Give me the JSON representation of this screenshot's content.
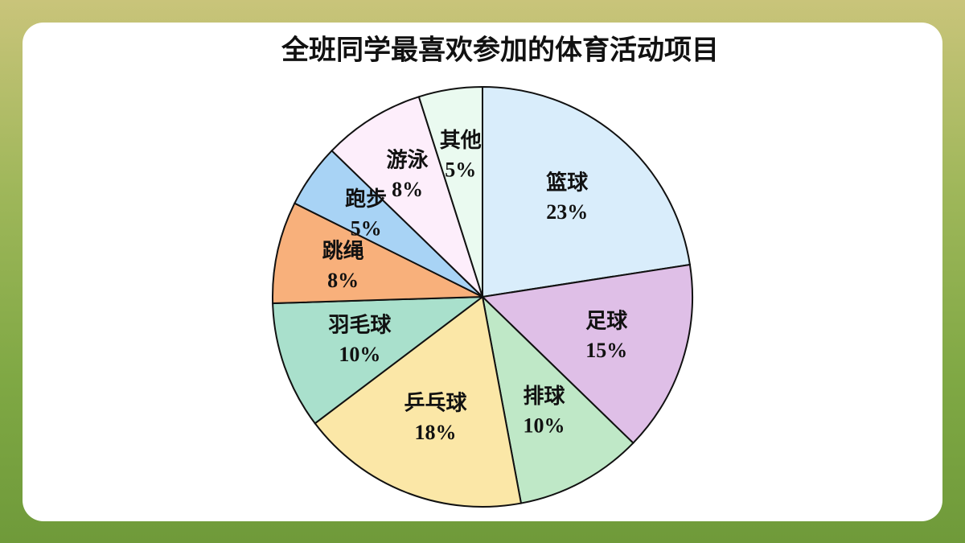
{
  "chart_data": {
    "type": "pie",
    "title": "全班同学最喜欢参加的体育活动项目",
    "categories": [
      "篮球",
      "足球",
      "排球",
      "乒乓球",
      "羽毛球",
      "跳绳",
      "跑步",
      "游泳",
      "其他"
    ],
    "values": [
      23,
      15,
      10,
      18,
      10,
      8,
      5,
      8,
      5
    ],
    "value_labels": [
      "23%",
      "15%",
      "10%",
      "18%",
      "10%",
      "8%",
      "5%",
      "8%",
      "5%"
    ],
    "colors": [
      "#d9edfb",
      "#dfbfe7",
      "#bfe8c7",
      "#fbe7a7",
      "#a9e0cc",
      "#f8b07b",
      "#a8d3f5",
      "#fdeefb",
      "#eafaf0"
    ]
  }
}
